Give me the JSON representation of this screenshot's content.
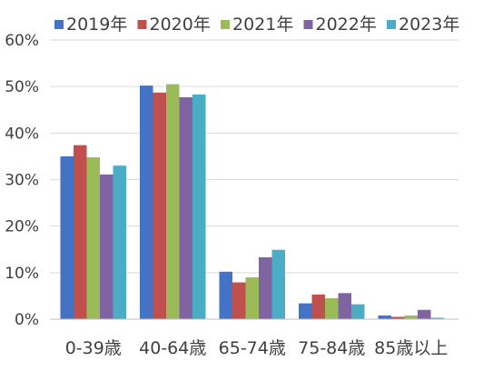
{
  "chart_data": {
    "type": "bar",
    "categories": [
      "0-39歳",
      "40-64歳",
      "65-74歳",
      "75-84歳",
      "85歳以上"
    ],
    "series": [
      {
        "name": "2019年",
        "color": "#4472C4",
        "values": [
          35.0,
          50.2,
          10.2,
          3.4,
          0.8
        ]
      },
      {
        "name": "2020年",
        "color": "#C0504D",
        "values": [
          37.4,
          48.7,
          7.9,
          5.3,
          0.5
        ]
      },
      {
        "name": "2021年",
        "color": "#9BBB59",
        "values": [
          34.8,
          50.5,
          9.0,
          4.5,
          0.8
        ]
      },
      {
        "name": "2022年",
        "color": "#8064A2",
        "values": [
          31.1,
          47.7,
          13.3,
          5.6,
          2.0
        ]
      },
      {
        "name": "2023年",
        "color": "#4BACC6",
        "values": [
          33.0,
          48.3,
          14.9,
          3.2,
          0.3
        ]
      }
    ],
    "yticks": [
      "0%",
      "10%",
      "20%",
      "30%",
      "40%",
      "50%",
      "60%"
    ],
    "ylim": [
      0,
      60
    ],
    "grid": true,
    "legend_position": "top"
  }
}
